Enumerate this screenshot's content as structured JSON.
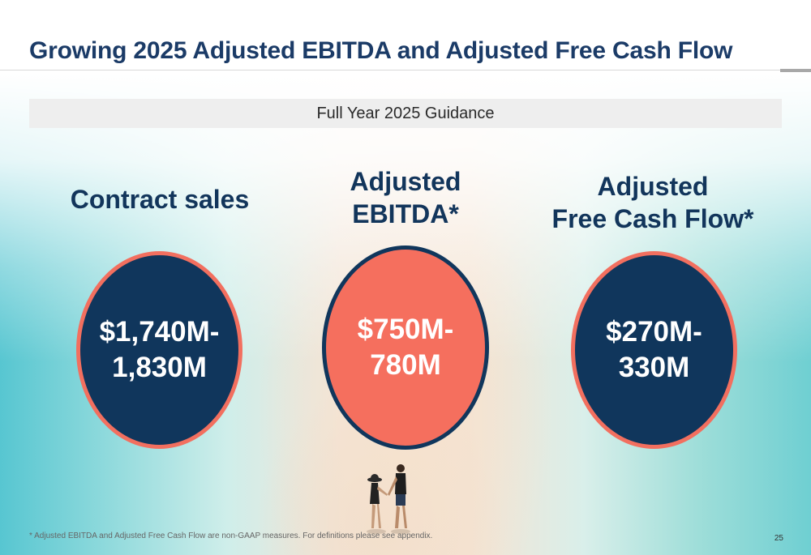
{
  "slide": {
    "title": "Growing 2025 Adjusted EBITDA and Adjusted Free Cash Flow",
    "guidance_label": "Full Year 2025 Guidance",
    "metrics": [
      {
        "heading_lines": [
          "Contract sales"
        ],
        "value_lines": [
          "$1,740M-",
          "1,830M"
        ]
      },
      {
        "heading_lines": [
          "Adjusted",
          "EBITDA*"
        ],
        "value_lines": [
          "$750M-",
          "780M"
        ]
      },
      {
        "heading_lines": [
          "Adjusted",
          "Free Cash Flow*"
        ],
        "value_lines": [
          "$270M-",
          "330M"
        ]
      }
    ],
    "footnote": "* Adjusted EBITDA and Adjusted Free Cash Flow are non-GAAP measures.  For definitions please see appendix.",
    "page_number": "25"
  },
  "colors": {
    "navy": "#10365c",
    "coral": "#f56f5e",
    "title_blue": "#1b3b67",
    "bar_gray": "#eeeeee"
  }
}
